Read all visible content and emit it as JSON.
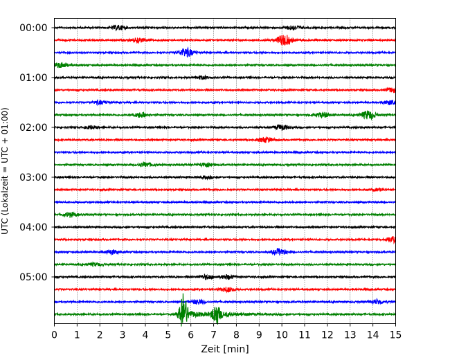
{
  "chart_data": {
    "type": "line",
    "title": "",
    "xlabel": "Zeit  [min]",
    "ylabel": "UTC (Lokalzeit = UTC + 01:00)",
    "xlim": [
      0,
      15
    ],
    "x_ticks": [
      0,
      1,
      2,
      3,
      4,
      5,
      6,
      7,
      8,
      9,
      10,
      11,
      12,
      13,
      14,
      15
    ],
    "x_tick_labels": [
      "0",
      "1",
      "2",
      "3",
      "4",
      "5",
      "6",
      "7",
      "8",
      "9",
      "10",
      "11",
      "12",
      "13",
      "14",
      "15"
    ],
    "y_tick_labels": [
      "00:00",
      "01:00",
      "02:00",
      "03:00",
      "04:00",
      "05:00"
    ],
    "trace_interval_min": 15,
    "trace_colors": [
      "#000000",
      "#ff0000",
      "#0000ff",
      "#008000"
    ],
    "grid": "vertical dotted",
    "traces": [
      {
        "start": "00:00",
        "color": "#000000",
        "bursts": [
          [
            2.8,
            0.3
          ],
          [
            10.5,
            0.3
          ]
        ]
      },
      {
        "start": "00:15",
        "color": "#ff0000",
        "bursts": [
          [
            3.7,
            0.3
          ],
          [
            10.1,
            0.8
          ]
        ]
      },
      {
        "start": "00:30",
        "color": "#0000ff",
        "bursts": [
          [
            5.8,
            0.6
          ]
        ]
      },
      {
        "start": "00:45",
        "color": "#008000",
        "bursts": [
          [
            0.3,
            0.35
          ]
        ]
      },
      {
        "start": "01:00",
        "color": "#000000",
        "bursts": [
          [
            6.5,
            0.2
          ]
        ]
      },
      {
        "start": "01:15",
        "color": "#ff0000",
        "bursts": [
          [
            14.9,
            0.3
          ]
        ]
      },
      {
        "start": "01:30",
        "color": "#0000ff",
        "bursts": [
          [
            2.0,
            0.25
          ],
          [
            14.8,
            0.3
          ]
        ]
      },
      {
        "start": "01:45",
        "color": "#008000",
        "bursts": [
          [
            3.8,
            0.35
          ],
          [
            11.8,
            0.35
          ],
          [
            13.8,
            0.6
          ]
        ]
      },
      {
        "start": "02:00",
        "color": "#000000",
        "bursts": [
          [
            1.6,
            0.2
          ],
          [
            10.0,
            0.35
          ]
        ]
      },
      {
        "start": "02:15",
        "color": "#ff0000",
        "bursts": [
          [
            9.3,
            0.35
          ]
        ]
      },
      {
        "start": "02:30",
        "color": "#0000ff",
        "bursts": []
      },
      {
        "start": "02:45",
        "color": "#008000",
        "bursts": [
          [
            4.0,
            0.3
          ],
          [
            6.7,
            0.3
          ]
        ]
      },
      {
        "start": "03:00",
        "color": "#000000",
        "bursts": [
          [
            6.7,
            0.15
          ]
        ]
      },
      {
        "start": "03:15",
        "color": "#ff0000",
        "bursts": [
          [
            14.2,
            0.15
          ]
        ]
      },
      {
        "start": "03:30",
        "color": "#0000ff",
        "bursts": []
      },
      {
        "start": "03:45",
        "color": "#008000",
        "bursts": [
          [
            0.7,
            0.3
          ]
        ]
      },
      {
        "start": "04:00",
        "color": "#000000",
        "bursts": []
      },
      {
        "start": "04:15",
        "color": "#ff0000",
        "bursts": [
          [
            14.9,
            0.4
          ]
        ]
      },
      {
        "start": "04:30",
        "color": "#0000ff",
        "bursts": [
          [
            2.5,
            0.3
          ],
          [
            9.9,
            0.45
          ]
        ]
      },
      {
        "start": "04:45",
        "color": "#008000",
        "bursts": [
          [
            1.8,
            0.2
          ]
        ]
      },
      {
        "start": "05:00",
        "color": "#000000",
        "bursts": [
          [
            6.7,
            0.3
          ],
          [
            7.6,
            0.3
          ]
        ]
      },
      {
        "start": "05:15",
        "color": "#ff0000",
        "bursts": [
          [
            7.6,
            0.3
          ]
        ]
      },
      {
        "start": "05:30",
        "color": "#0000ff",
        "bursts": [
          [
            6.3,
            0.3
          ],
          [
            14.2,
            0.3
          ]
        ]
      },
      {
        "start": "05:45",
        "color": "#008000",
        "bursts": [
          [
            5.65,
            2.5
          ],
          [
            7.1,
            1.3
          ]
        ]
      }
    ]
  }
}
